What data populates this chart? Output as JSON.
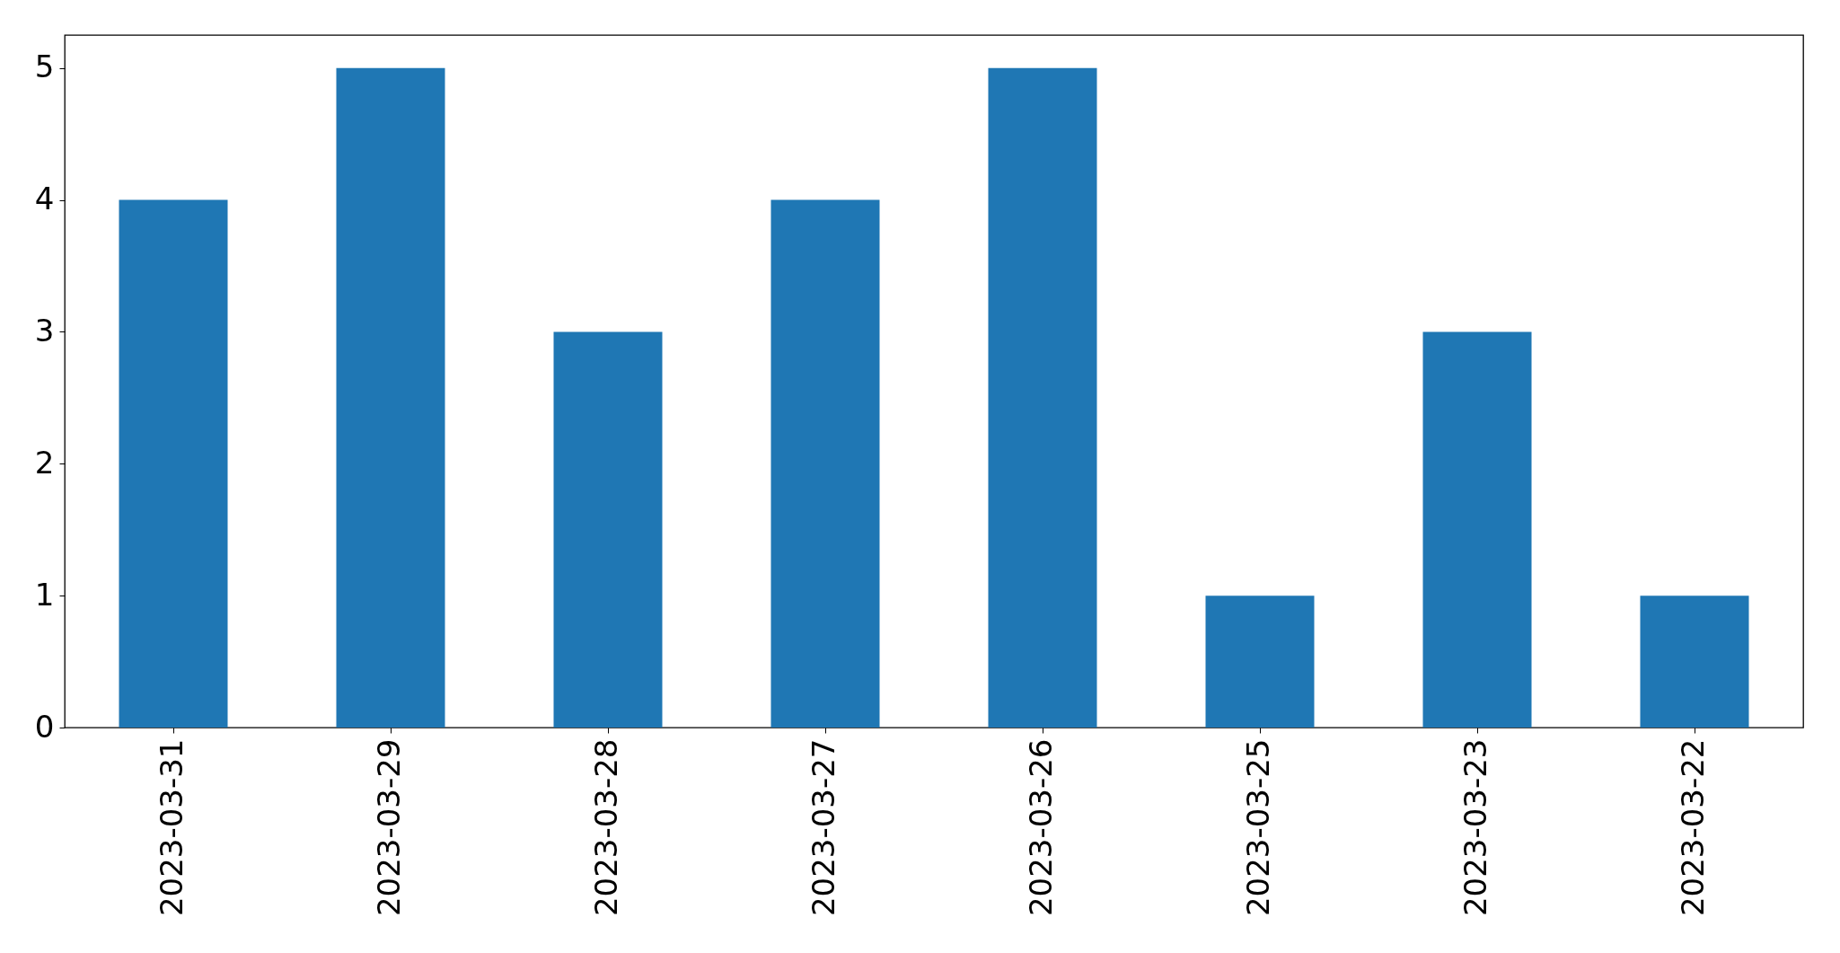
{
  "chart_data": {
    "type": "bar",
    "categories": [
      "2023-03-31",
      "2023-03-29",
      "2023-03-28",
      "2023-03-27",
      "2023-03-26",
      "2023-03-25",
      "2023-03-23",
      "2023-03-22"
    ],
    "values": [
      4,
      5,
      3,
      4,
      5,
      1,
      3,
      1
    ],
    "color": "#1f77b4",
    "ylim": [
      0,
      5.25
    ],
    "yticks": [
      0,
      1,
      2,
      3,
      4,
      5
    ]
  }
}
